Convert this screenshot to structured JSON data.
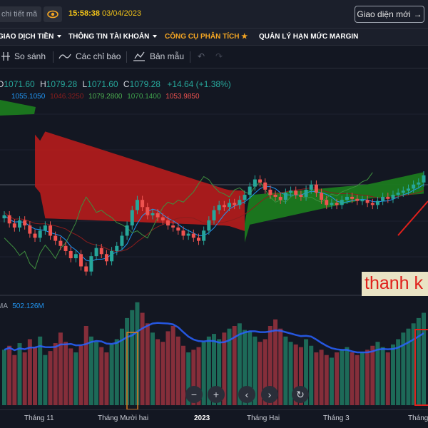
{
  "header": {
    "search_text": "chi tiết mã",
    "time": "15:58:38",
    "date": "03/04/2023",
    "layout_button": "Giao diện mới"
  },
  "menu": [
    {
      "label": "GIAO DỊCH TIỀN",
      "caret": true,
      "active": false
    },
    {
      "label": "THÔNG TIN TÀI KHOẢN",
      "caret": true,
      "active": false
    },
    {
      "label": "CÔNG CỤ PHÂN TÍCH",
      "caret": false,
      "active": true,
      "star": "★"
    },
    {
      "label": "QUẢN LÝ HẠN MỨC MARGIN",
      "caret": false,
      "active": false
    }
  ],
  "toolbar": {
    "compare": "So sánh",
    "indicators": "Các chỉ báo",
    "templates": "Bản mẫu"
  },
  "ohlc": {
    "o_label": "O",
    "o": "1071.60",
    "h_label": "H",
    "h": "1079.28",
    "l_label": "L",
    "l": "1071.60",
    "c_label": "C",
    "c": "1079.28",
    "change": "+14.64 (+1.38%)"
  },
  "ichimoku": {
    "v1": "1055.1050",
    "v2": "1046.3250",
    "v3": "1079.2800",
    "v4": "1070.1400",
    "v5": "1053.9850"
  },
  "volume": {
    "label": "MA",
    "value": "502.126M"
  },
  "annotation": "thanh k",
  "xaxis": [
    "Tháng 11",
    "Tháng Mười hai",
    "2023",
    "Tháng Hai",
    "Tháng 3",
    "Tháng"
  ],
  "colors": {
    "up": "#26a69a",
    "down": "#ef5350",
    "accent": "#f5a623",
    "time": "#f5c518"
  },
  "chart_data": {
    "type": "candlestick",
    "series": [
      {
        "name": "price",
        "values": [
          1040,
          1032,
          1028,
          1035,
          1030,
          1022,
          1018,
          1025,
          1030,
          1020,
          1015,
          1010,
          1005,
          998,
          1002,
          990,
          985,
          1000,
          1008,
          1002,
          995,
          1005,
          1010,
          1020,
          1030,
          1045,
          1055,
          1048,
          1040,
          1042,
          1038,
          1035,
          1030,
          1028,
          1025,
          1020,
          1022,
          1018,
          1015,
          1025,
          1035,
          1045,
          1050,
          1048,
          1052,
          1050,
          1055,
          1060,
          1068,
          1075,
          1072,
          1065,
          1060,
          1058,
          1055,
          1062,
          1064,
          1060,
          1058,
          1065,
          1070,
          1062,
          1055,
          1050,
          1052,
          1050,
          1055,
          1058,
          1056,
          1054,
          1055,
          1052,
          1050,
          1054,
          1058,
          1056,
          1060,
          1062,
          1064,
          1066,
          1070,
          1072,
          1079
        ]
      }
    ],
    "volume": [
      42,
      45,
      38,
      47,
      40,
      50,
      44,
      52,
      38,
      41,
      47,
      55,
      48,
      43,
      40,
      45,
      60,
      52,
      48,
      44,
      40,
      46,
      50,
      58,
      66,
      72,
      78,
      70,
      62,
      55,
      50,
      48,
      56,
      60,
      52,
      45,
      40,
      42,
      44,
      48,
      52,
      54,
      50,
      55,
      58,
      60,
      62,
      57,
      56,
      52,
      48,
      50,
      60,
      65,
      58,
      52,
      48,
      46,
      44,
      50,
      45,
      40,
      42,
      38,
      36,
      40,
      42,
      44,
      40,
      38,
      40,
      42,
      45,
      48,
      44,
      40,
      46,
      50,
      55,
      58,
      62,
      66,
      70
    ]
  }
}
